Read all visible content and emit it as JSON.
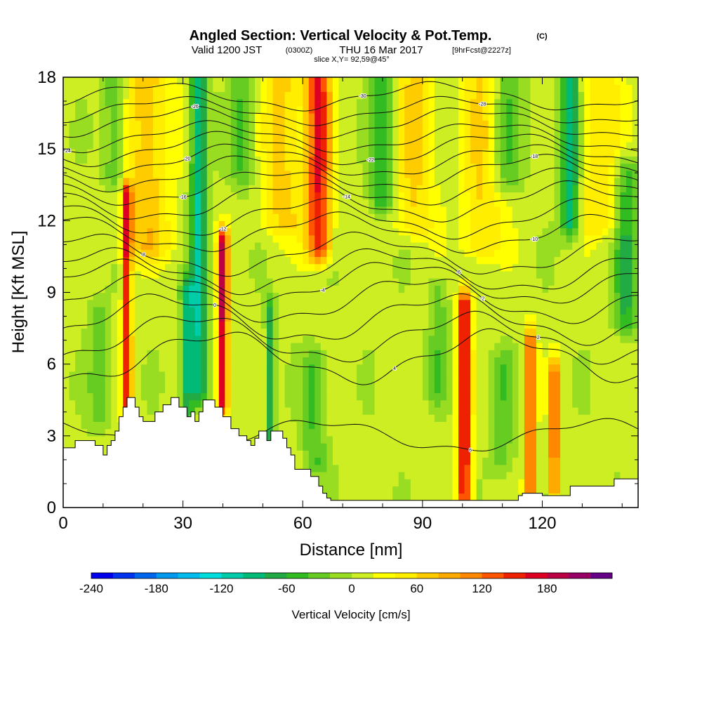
{
  "header": {
    "title": "Angled Section: Vertical Velocity & Pot.Temp.",
    "title_suffix": "(C)",
    "valid_prefix": "Valid 1200 JST",
    "valid_utc": "(0300Z)",
    "valid_date": "THU 16 Mar 2017",
    "forecast": "[9hrFcst@2227z]",
    "slice": "slice X,Y= 92,59@45°"
  },
  "chart_data": {
    "type": "heatmap",
    "xlabel": "Distance [nm]",
    "ylabel": "Height [Kft MSL]",
    "xlim": [
      0,
      144
    ],
    "ylim": [
      0,
      18
    ],
    "x_ticks": [
      0,
      30,
      60,
      90,
      120
    ],
    "y_ticks": [
      0,
      3,
      6,
      9,
      12,
      15,
      18
    ],
    "colorbar": {
      "label": "Vertical Velocity [cm/s]",
      "tick_labels": [
        "-240",
        "-180",
        "-120",
        "-60",
        "0",
        "60",
        "120",
        "180"
      ],
      "tick_values": [
        -240,
        -180,
        -120,
        -60,
        0,
        60,
        120,
        180
      ],
      "range": [
        -240,
        220
      ],
      "step": 20,
      "colors": [
        "#0000ee",
        "#0033ee",
        "#0066ee",
        "#0099ee",
        "#00bbee",
        "#00dddd",
        "#00ccaa",
        "#00bb77",
        "#22aa44",
        "#33bb22",
        "#66cc22",
        "#99dd22",
        "#ccee22",
        "#ffff00",
        "#ffee00",
        "#ffcc00",
        "#ffaa00",
        "#ff8800",
        "#ff5500",
        "#ee2200",
        "#dd0022",
        "#bb0044",
        "#990066",
        "#660088"
      ]
    },
    "velocity_features": [
      {
        "x": 16,
        "top": 13,
        "bottom": 4.5,
        "width": 1.2,
        "w": 150
      },
      {
        "x": 40,
        "top": 11,
        "bottom": 4.5,
        "width": 1.3,
        "w": 180
      },
      {
        "x": 64,
        "top": 18,
        "bottom": 11,
        "width": 3,
        "w": 150
      },
      {
        "x": 100.5,
        "top": 8.5,
        "bottom": 0.5,
        "width": 1.6,
        "w": 170
      },
      {
        "x": 117,
        "top": 6.8,
        "bottom": 1,
        "width": 1.3,
        "w": 150
      },
      {
        "x": 123,
        "top": 5.5,
        "bottom": 1,
        "width": 1.2,
        "w": 140
      },
      {
        "x": 21,
        "top": 18,
        "bottom": 11,
        "width": 6,
        "w": 65
      },
      {
        "x": 55,
        "top": 18,
        "bottom": 12,
        "width": 5,
        "w": 60
      },
      {
        "x": 88,
        "top": 18,
        "bottom": 12,
        "width": 5,
        "w": 55
      },
      {
        "x": 105,
        "top": 18,
        "bottom": 11,
        "width": 5,
        "w": 55
      },
      {
        "x": 134,
        "top": 18,
        "bottom": 12,
        "width": 6,
        "w": 50
      },
      {
        "x": 34,
        "top": 18,
        "bottom": 5,
        "width": 2.2,
        "w": -110
      },
      {
        "x": 31,
        "top": 9,
        "bottom": 4,
        "width": 1.5,
        "w": -90
      },
      {
        "x": 52,
        "top": 8,
        "bottom": 3,
        "width": 1.2,
        "w": -80
      },
      {
        "x": 80,
        "top": 18,
        "bottom": 13,
        "width": 3,
        "w": -70
      },
      {
        "x": 127,
        "top": 18,
        "bottom": 12,
        "width": 2.5,
        "w": -110
      },
      {
        "x": 141,
        "top": 14,
        "bottom": 8,
        "width": 3,
        "w": -70
      },
      {
        "x": 13,
        "top": 18,
        "bottom": 14,
        "width": 3,
        "w": -55
      },
      {
        "x": 45,
        "top": 18,
        "bottom": 14,
        "width": 3,
        "w": -50
      },
      {
        "x": 111,
        "top": 18,
        "bottom": 14,
        "width": 4,
        "w": -50
      },
      {
        "x": 63,
        "top": 6,
        "bottom": 2,
        "width": 3,
        "w": -50
      },
      {
        "x": 9,
        "top": 8,
        "bottom": 4,
        "width": 2.5,
        "w": -45
      },
      {
        "x": 110,
        "top": 6,
        "bottom": 2,
        "width": 3,
        "w": -40
      },
      {
        "x": 94,
        "top": 9,
        "bottom": 5,
        "width": 2.5,
        "w": -40
      }
    ],
    "terrain": [
      [
        0,
        2.5
      ],
      [
        3,
        2.5
      ],
      [
        3,
        2.8
      ],
      [
        8,
        2.8
      ],
      [
        8,
        2.6
      ],
      [
        10,
        2.6
      ],
      [
        10,
        2.2
      ],
      [
        11,
        2.2
      ],
      [
        11,
        2.6
      ],
      [
        12,
        2.6
      ],
      [
        12,
        2.8
      ],
      [
        13,
        2.8
      ],
      [
        13,
        3.2
      ],
      [
        14,
        3.2
      ],
      [
        14,
        3.8
      ],
      [
        15,
        3.8
      ],
      [
        15,
        4.2
      ],
      [
        16,
        4.2
      ],
      [
        16,
        4.6
      ],
      [
        18,
        4.6
      ],
      [
        18,
        4.2
      ],
      [
        19,
        4.2
      ],
      [
        19,
        3.8
      ],
      [
        20,
        3.8
      ],
      [
        20,
        3.6
      ],
      [
        23,
        3.6
      ],
      [
        23,
        4.0
      ],
      [
        25,
        4.0
      ],
      [
        25,
        4.3
      ],
      [
        27,
        4.3
      ],
      [
        27,
        4.6
      ],
      [
        29,
        4.6
      ],
      [
        29,
        4.2
      ],
      [
        31,
        4.2
      ],
      [
        31,
        3.8
      ],
      [
        32,
        3.8
      ],
      [
        32,
        4.0
      ],
      [
        33,
        4.0
      ],
      [
        33,
        3.6
      ],
      [
        34,
        3.6
      ],
      [
        34,
        4.0
      ],
      [
        35,
        4.0
      ],
      [
        35,
        4.5
      ],
      [
        38,
        4.5
      ],
      [
        38,
        4.2
      ],
      [
        40,
        4.2
      ],
      [
        40,
        3.8
      ],
      [
        42,
        3.8
      ],
      [
        42,
        3.3
      ],
      [
        44,
        3.3
      ],
      [
        44,
        3.0
      ],
      [
        46,
        3.0
      ],
      [
        46,
        2.8
      ],
      [
        47,
        2.8
      ],
      [
        47,
        2.6
      ],
      [
        48,
        2.6
      ],
      [
        48,
        2.9
      ],
      [
        49,
        2.9
      ],
      [
        49,
        3.2
      ],
      [
        51,
        3.2
      ],
      [
        51,
        2.8
      ],
      [
        52,
        2.8
      ],
      [
        52,
        3.2
      ],
      [
        55,
        3.2
      ],
      [
        55,
        2.9
      ],
      [
        56,
        2.9
      ],
      [
        56,
        2.5
      ],
      [
        57,
        2.5
      ],
      [
        57,
        2.2
      ],
      [
        58,
        2.2
      ],
      [
        58,
        1.6
      ],
      [
        62,
        1.6
      ],
      [
        62,
        1.3
      ],
      [
        64,
        1.3
      ],
      [
        64,
        0.9
      ],
      [
        65,
        0.9
      ],
      [
        65,
        0.6
      ],
      [
        66,
        0.6
      ],
      [
        66,
        0.4
      ],
      [
        67,
        0.4
      ],
      [
        67,
        0.3
      ],
      [
        114,
        0.3
      ],
      [
        114,
        0.5
      ],
      [
        115,
        0.5
      ],
      [
        115,
        0.6
      ],
      [
        120,
        0.6
      ],
      [
        120,
        0.5
      ],
      [
        127,
        0.5
      ],
      [
        127,
        0.9
      ],
      [
        138,
        0.9
      ],
      [
        138,
        1.2
      ],
      [
        144,
        1.2
      ]
    ],
    "theta_contours": [
      {
        "label": "-30",
        "base": 17.2,
        "amp": 0.5,
        "label_x": 75
      },
      {
        "label": "-28",
        "base": 16.6,
        "amp": 0.5,
        "label_x": 105
      },
      {
        "label": "-26",
        "base": 16.1,
        "amp": 0.55,
        "label_x": 33
      },
      {
        "label": "-24",
        "base": 15.5,
        "amp": 0.55,
        "label_x": 1
      },
      {
        "label": "-22",
        "base": 15.0,
        "amp": 0.6,
        "label_x": 77
      },
      {
        "label": "-20",
        "base": 14.5,
        "amp": 0.6,
        "label_x": 31
      },
      {
        "label": "-18",
        "base": 14.0,
        "amp": 0.65,
        "label_x": 118
      },
      {
        "label": "-16",
        "base": 13.4,
        "amp": 0.65,
        "label_x": 30
      },
      {
        "label": "-14",
        "base": 12.8,
        "amp": 0.7,
        "label_x": 71
      },
      {
        "label": "-12",
        "base": 12.1,
        "amp": 0.7,
        "label_x": 40
      },
      {
        "label": "-10",
        "base": 11.5,
        "amp": 0.7,
        "label_x": 118
      },
      {
        "label": "-8",
        "base": 10.6,
        "amp": 0.75,
        "label_x": 20
      },
      {
        "label": "-6",
        "base": 9.9,
        "amp": 0.8,
        "label_x": 99
      },
      {
        "label": "-4",
        "base": 9.4,
        "amp": 0.8,
        "label_x": 65
      },
      {
        "label": "-2",
        "base": 8.7,
        "amp": 0.85,
        "label_x": 105
      },
      {
        "label": "0",
        "base": 7.9,
        "amp": 0.9,
        "label_x": 38
      },
      {
        "label": "2",
        "base": 7.1,
        "amp": 0.9,
        "label_x": 119
      },
      {
        "label": "4",
        "base": 6.3,
        "amp": 0.95,
        "label_x": 83
      },
      {
        "label": "6",
        "base": 3.0,
        "amp": 0.6,
        "label_x": 102
      }
    ]
  }
}
